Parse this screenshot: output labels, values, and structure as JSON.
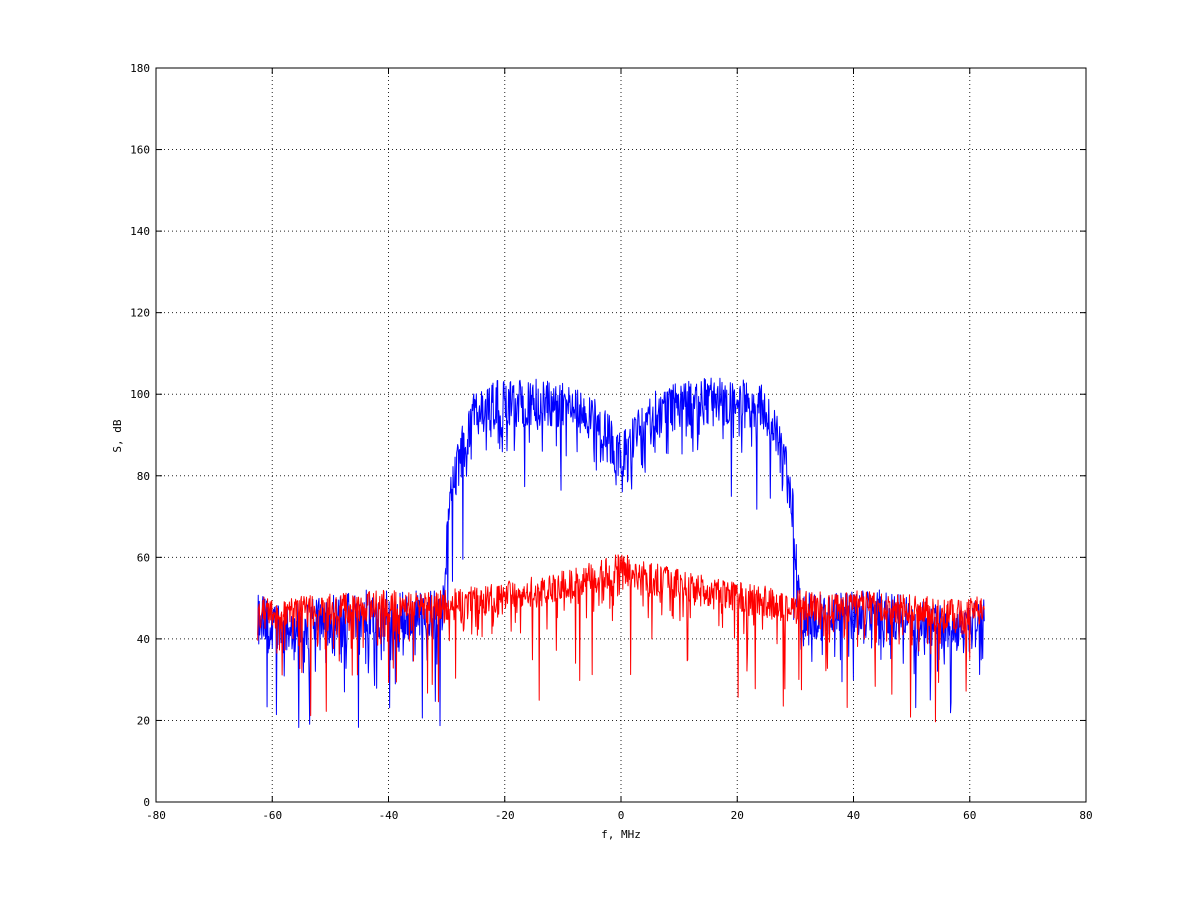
{
  "chart_data": {
    "type": "line",
    "title": "",
    "xlabel": "f, MHz",
    "ylabel": "S, dB",
    "xlim": [
      -80,
      80
    ],
    "ylim": [
      0,
      180
    ],
    "xticks": [
      -80,
      -60,
      -40,
      -20,
      0,
      20,
      40,
      60,
      80
    ],
    "yticks": [
      0,
      20,
      40,
      60,
      80,
      100,
      120,
      140,
      160,
      180
    ],
    "xtick_labels": [
      "-80",
      "-60",
      "-40",
      "-20",
      "0",
      "20",
      "40",
      "60",
      "80"
    ],
    "ytick_labels": [
      "0",
      "20",
      "40",
      "60",
      "80",
      "100",
      "120",
      "140",
      "160",
      "180"
    ],
    "grid": true,
    "x_range_of_data": [
      -62.5,
      62.5
    ],
    "series": [
      {
        "color": "#0000ff",
        "envelope": {
          "x": [
            -62.5,
            -60,
            -55,
            -50,
            -45,
            -40,
            -35,
            -31,
            -30.5,
            -30,
            -29.5,
            -29,
            -28,
            -27,
            -26,
            -25,
            -20,
            -15,
            -10,
            -6,
            -4,
            -2,
            -1,
            0,
            1,
            2,
            4,
            6,
            10,
            15,
            20,
            25,
            26,
            27,
            28,
            29,
            29.5,
            30,
            30.5,
            31,
            35,
            40,
            45,
            50,
            55,
            60,
            62.5
          ],
          "y": [
            46,
            42,
            43,
            45,
            46,
            46,
            46,
            46,
            50,
            62,
            72,
            78,
            83,
            88,
            92,
            96,
            98,
            98,
            97,
            95,
            92,
            89,
            86,
            85,
            86,
            89,
            92,
            95,
            97,
            98,
            98,
            96,
            92,
            88,
            83,
            78,
            72,
            62,
            50,
            46,
            46,
            46,
            46,
            45,
            43,
            42,
            46
          ]
        },
        "noise_spread_db": 6,
        "dip_to_db": 16
      },
      {
        "color": "#ff0000",
        "envelope": {
          "x": [
            -62.5,
            -60,
            -50,
            -40,
            -30,
            -20,
            -10,
            -5,
            0,
            5,
            10,
            20,
            30,
            40,
            50,
            60,
            62.5
          ],
          "y": [
            47,
            46,
            47,
            48,
            48,
            50,
            53,
            55,
            57,
            55,
            53,
            50,
            48,
            48,
            47,
            46,
            47
          ]
        },
        "noise_spread_db": 4,
        "dip_to_db": 17
      }
    ]
  }
}
